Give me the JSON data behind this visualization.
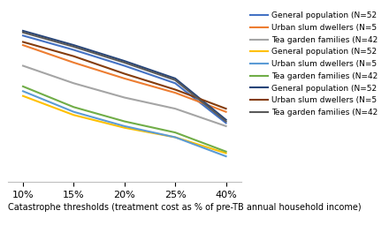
{
  "x_labels": [
    "10%",
    "15%",
    "20%",
    "25%",
    "40%"
  ],
  "x_positions": [
    0,
    1,
    2,
    3,
    4
  ],
  "series": [
    {
      "label": "General population (N=52",
      "color": "#4472C4",
      "linewidth": 1.5,
      "values": [
        92,
        83,
        73,
        62,
        37
      ]
    },
    {
      "label": "Urban slum dwellers (N=5",
      "color": "#ED7D31",
      "linewidth": 1.5,
      "values": [
        86,
        75,
        65,
        56,
        44
      ]
    },
    {
      "label": "Tea garden families (N=42",
      "color": "#A5A5A5",
      "linewidth": 1.5,
      "values": [
        73,
        62,
        53,
        46,
        35
      ]
    },
    {
      "label": "General population (N=52",
      "color": "#FFC000",
      "linewidth": 1.5,
      "values": [
        54,
        42,
        34,
        28,
        18
      ]
    },
    {
      "label": "Urban slum dwellers (N=5",
      "color": "#5B9BD5",
      "linewidth": 1.5,
      "values": [
        57,
        44,
        35,
        28,
        16
      ]
    },
    {
      "label": "Tea garden families (N=42",
      "color": "#70AD47",
      "linewidth": 1.5,
      "values": [
        60,
        47,
        38,
        31,
        19
      ]
    },
    {
      "label": "General population (N=52",
      "color": "#264478",
      "linewidth": 1.5,
      "values": [
        95,
        86,
        76,
        65,
        39
      ]
    },
    {
      "label": "Urban slum dwellers (N=5",
      "color": "#843C0C",
      "linewidth": 1.5,
      "values": [
        88,
        79,
        68,
        58,
        46
      ]
    },
    {
      "label": "Tea garden families (N=42",
      "color": "#595959",
      "linewidth": 1.5,
      "values": [
        94,
        85,
        75,
        64,
        38
      ]
    }
  ],
  "xlabel": "Catastrophe thresholds (treatment cost as % of pre-TB annual household income)",
  "ylim": [
    0,
    110
  ],
  "bg_color": "#FFFFFF",
  "grid_color": "#D9D9D9",
  "legend_fontsize": 6.5,
  "xlabel_fontsize": 7.0,
  "tick_fontsize": 8.0
}
